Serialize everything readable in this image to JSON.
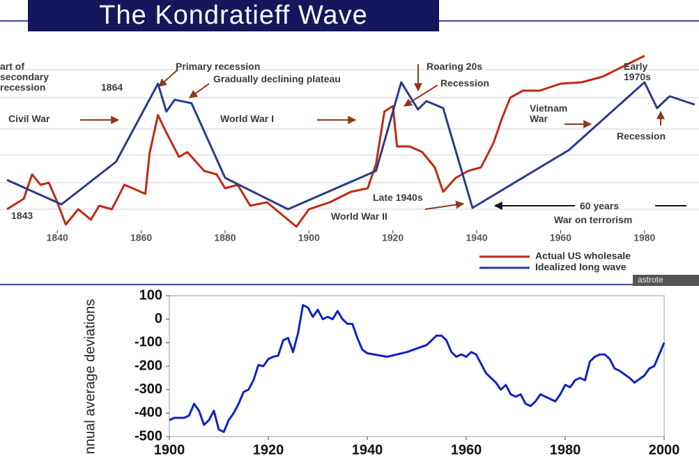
{
  "chart_data": [
    {
      "type": "line",
      "title": "The Kondratieff Wave",
      "xlim": [
        1828,
        1992
      ],
      "ylim": [
        0,
        100
      ],
      "xticks": [
        1840,
        1860,
        1880,
        1900,
        1920,
        1940,
        1960,
        1980
      ],
      "legend": "bottom-right",
      "annotations": [
        "art of secondary recession",
        "1864",
        "Primary recession",
        "Gradually declining plateau",
        "Civil War",
        "World War I",
        "Roaring 20s",
        "Recession",
        "Early 1970s",
        "Vietnam War",
        "Recession",
        "Late 1940s",
        "World War II",
        "60 years",
        "War on terrorism",
        "1843"
      ],
      "watermark": "astrote",
      "series": [
        {
          "name": "Actual US wholesale",
          "color": "#c0290f",
          "x": [
            1828,
            1832,
            1834,
            1836,
            1838,
            1840,
            1842,
            1845,
            1848,
            1850,
            1853,
            1856,
            1858,
            1861,
            1862,
            1864,
            1866,
            1869,
            1871,
            1875,
            1878,
            1880,
            1883,
            1886,
            1890,
            1894,
            1897,
            1900,
            1905,
            1910,
            1914,
            1916,
            1918,
            1920,
            1921,
            1924,
            1927,
            1930,
            1932,
            1935,
            1938,
            1941,
            1944,
            1946,
            1948,
            1951,
            1955,
            1960,
            1965,
            1970,
            1975,
            1980
          ],
          "values": [
            12,
            18,
            32,
            26,
            27.2,
            16,
            3.2,
            12,
            6,
            14,
            12,
            26,
            24,
            20.8,
            44,
            66,
            56,
            42,
            44.8,
            34,
            32,
            24,
            26,
            14,
            16,
            8,
            2,
            12,
            16,
            22,
            24,
            38,
            68,
            71.2,
            48,
            48,
            44.8,
            36,
            22,
            30,
            34,
            36,
            50,
            64,
            76,
            80,
            80,
            84,
            84.8,
            88,
            94,
            100
          ]
        },
        {
          "name": "Idealized long wave",
          "color": "#2b3a8c",
          "x": [
            1828,
            1841,
            1854,
            1864,
            1866,
            1868,
            1872,
            1880,
            1895,
            1916,
            1922,
            1926,
            1928,
            1932,
            1939,
            1962,
            1980,
            1983,
            1986,
            1992
          ],
          "values": [
            28.8,
            14.8,
            39.2,
            84,
            68,
            74.8,
            72.8,
            30,
            12,
            34,
            84.8,
            69.2,
            74,
            70,
            12.8,
            46,
            84.8,
            70,
            76.8,
            72
          ]
        }
      ]
    },
    {
      "type": "line",
      "y_label": "nnual average deviations",
      "xlim": [
        1900,
        2000
      ],
      "ylim": [
        -500,
        100
      ],
      "xticks": [
        1900,
        1920,
        1940,
        1960,
        1980,
        2000
      ],
      "yticks": [
        100,
        0,
        -100,
        -200,
        -300,
        -400,
        -500
      ],
      "series": [
        {
          "color": "#1020c8",
          "x": [
            1900,
            1901,
            1903,
            1904,
            1905,
            1906,
            1907,
            1908,
            1909,
            1910,
            1911,
            1912,
            1913,
            1914,
            1915,
            1916,
            1917,
            1918,
            1919,
            1920,
            1921,
            1922,
            1923,
            1924,
            1925,
            1926,
            1927,
            1928,
            1929,
            1930,
            1931,
            1932,
            1933,
            1934,
            1935,
            1936,
            1937,
            1938,
            1939,
            1940,
            1944,
            1948,
            1952,
            1954,
            1955,
            1956,
            1957,
            1958,
            1959,
            1960,
            1961,
            1962,
            1963,
            1964,
            1966,
            1967,
            1968,
            1969,
            1970,
            1971,
            1972,
            1973,
            1974,
            1975,
            1976,
            1977,
            1978,
            1979,
            1980,
            1981,
            1982,
            1983,
            1984,
            1985,
            1986,
            1987,
            1988,
            1989,
            1990,
            1991,
            1993,
            1994,
            1995,
            1996,
            1997,
            1998,
            1999,
            2000
          ],
          "values": [
            -430,
            -420,
            -420,
            -410,
            -360,
            -390,
            -450,
            -430,
            -390,
            -470,
            -480,
            -430,
            -400,
            -360,
            -310,
            -300,
            -260,
            -195,
            -200,
            -170,
            -160,
            -155,
            -90,
            -80,
            -140,
            -60,
            60,
            50,
            10,
            40,
            0,
            10,
            0,
            35,
            0,
            -20,
            -20,
            -80,
            -130,
            -145,
            -160,
            -140,
            -110,
            -70,
            -70,
            -90,
            -140,
            -160,
            -150,
            -160,
            -140,
            -150,
            -190,
            -230,
            -270,
            -300,
            -280,
            -320,
            -330,
            -320,
            -360,
            -370,
            -350,
            -320,
            -330,
            -340,
            -350,
            -320,
            -280,
            -290,
            -260,
            -250,
            -260,
            -180,
            -160,
            -150,
            -150,
            -170,
            -210,
            -220,
            -250,
            -270,
            -255,
            -240,
            -210,
            -200,
            -150,
            -100
          ]
        }
      ]
    }
  ]
}
